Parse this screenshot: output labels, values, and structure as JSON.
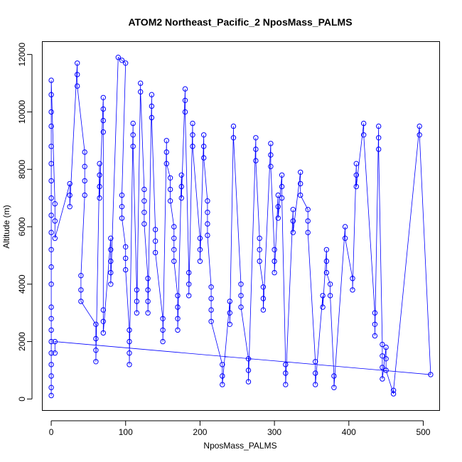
{
  "chart_data": {
    "type": "scatter",
    "title": "ATOM2 Northeast_Pacific_2 NposMass_PALMS",
    "xlabel": "NposMass_PALMS",
    "ylabel": "Altitude (m)",
    "xlim": [
      -12,
      522
    ],
    "ylim": [
      -400,
      12450
    ],
    "xticks": [
      0,
      100,
      200,
      300,
      400,
      500
    ],
    "yticks": [
      0,
      2000,
      4000,
      6000,
      8000,
      10000,
      12000
    ],
    "grid": false,
    "legend": "none",
    "color": "#0000ff",
    "marker": "open-circle",
    "connected_by_lines": true,
    "series": [
      {
        "values": [
          [
            0,
            120
          ],
          [
            0,
            400
          ],
          [
            0,
            800
          ],
          [
            0,
            1200
          ],
          [
            0,
            1600
          ],
          [
            0,
            2000
          ],
          [
            0,
            2400
          ],
          [
            0,
            2800
          ],
          [
            0,
            3200
          ],
          [
            0,
            4000
          ],
          [
            0,
            4600
          ],
          [
            0,
            5200
          ],
          [
            0,
            5800
          ],
          [
            0,
            6400
          ],
          [
            0,
            7000
          ],
          [
            0,
            7600
          ],
          [
            0,
            8200
          ],
          [
            0,
            8800
          ],
          [
            0,
            9500
          ],
          [
            0,
            10000
          ],
          [
            0,
            10600
          ],
          [
            0,
            11100
          ],
          [
            5,
            6800
          ],
          [
            5,
            6200
          ],
          [
            5,
            5600
          ],
          [
            25,
            7500
          ],
          [
            25,
            7100
          ],
          [
            25,
            6700
          ],
          [
            35,
            11700
          ],
          [
            35,
            11300
          ],
          [
            35,
            10900
          ],
          [
            45,
            8600
          ],
          [
            45,
            8100
          ],
          [
            45,
            7600
          ],
          [
            45,
            7100
          ],
          [
            40,
            4300
          ],
          [
            40,
            3800
          ],
          [
            40,
            3400
          ],
          [
            60,
            2600
          ],
          [
            60,
            2100
          ],
          [
            60,
            1700
          ],
          [
            60,
            1300
          ],
          [
            65,
            8200
          ],
          [
            65,
            7800
          ],
          [
            65,
            7400
          ],
          [
            65,
            7000
          ],
          [
            70,
            10500
          ],
          [
            70,
            10100
          ],
          [
            70,
            9700
          ],
          [
            70,
            9300
          ],
          [
            70,
            3100
          ],
          [
            70,
            2700
          ],
          [
            70,
            2300
          ],
          [
            80,
            5600
          ],
          [
            80,
            5200
          ],
          [
            80,
            4800
          ],
          [
            80,
            4400
          ],
          [
            80,
            4000
          ],
          [
            90,
            11900
          ],
          [
            95,
            11800
          ],
          [
            100,
            11700
          ],
          [
            95,
            7100
          ],
          [
            95,
            6700
          ],
          [
            95,
            6300
          ],
          [
            100,
            5300
          ],
          [
            100,
            4900
          ],
          [
            100,
            4500
          ],
          [
            105,
            2400
          ],
          [
            105,
            2000
          ],
          [
            105,
            1600
          ],
          [
            105,
            1200
          ],
          [
            110,
            9600
          ],
          [
            110,
            9200
          ],
          [
            110,
            8800
          ],
          [
            115,
            3800
          ],
          [
            115,
            3400
          ],
          [
            115,
            3000
          ],
          [
            120,
            11000
          ],
          [
            120,
            10700
          ],
          [
            125,
            7300
          ],
          [
            125,
            6900
          ],
          [
            125,
            6500
          ],
          [
            125,
            6100
          ],
          [
            130,
            4200
          ],
          [
            130,
            3800
          ],
          [
            130,
            3400
          ],
          [
            130,
            3000
          ],
          [
            135,
            10600
          ],
          [
            135,
            10200
          ],
          [
            135,
            9800
          ],
          [
            140,
            5900
          ],
          [
            140,
            5500
          ],
          [
            140,
            5100
          ],
          [
            150,
            2800
          ],
          [
            150,
            2400
          ],
          [
            150,
            2000
          ],
          [
            155,
            9000
          ],
          [
            155,
            8600
          ],
          [
            155,
            8200
          ],
          [
            160,
            7700
          ],
          [
            160,
            7300
          ],
          [
            160,
            6900
          ],
          [
            165,
            6000
          ],
          [
            165,
            5600
          ],
          [
            165,
            5200
          ],
          [
            165,
            4800
          ],
          [
            170,
            3600
          ],
          [
            170,
            3200
          ],
          [
            170,
            2800
          ],
          [
            170,
            2400
          ],
          [
            175,
            7800
          ],
          [
            175,
            7400
          ],
          [
            175,
            7000
          ],
          [
            180,
            10800
          ],
          [
            180,
            10400
          ],
          [
            180,
            10000
          ],
          [
            185,
            4400
          ],
          [
            185,
            4000
          ],
          [
            185,
            3600
          ],
          [
            190,
            9600
          ],
          [
            190,
            9200
          ],
          [
            190,
            8800
          ],
          [
            200,
            5600
          ],
          [
            200,
            5200
          ],
          [
            200,
            4800
          ],
          [
            205,
            9200
          ],
          [
            205,
            8800
          ],
          [
            205,
            8400
          ],
          [
            210,
            6900
          ],
          [
            210,
            6500
          ],
          [
            210,
            6100
          ],
          [
            210,
            5700
          ],
          [
            215,
            3900
          ],
          [
            215,
            3500
          ],
          [
            215,
            3100
          ],
          [
            215,
            2700
          ],
          [
            230,
            1200
          ],
          [
            230,
            800
          ],
          [
            230,
            500
          ],
          [
            240,
            3400
          ],
          [
            240,
            3000
          ],
          [
            240,
            2600
          ],
          [
            245,
            9500
          ],
          [
            245,
            9100
          ],
          [
            255,
            4000
          ],
          [
            255,
            3600
          ],
          [
            255,
            3200
          ],
          [
            265,
            1400
          ],
          [
            265,
            1000
          ],
          [
            265,
            600
          ],
          [
            275,
            9100
          ],
          [
            275,
            8700
          ],
          [
            275,
            8300
          ],
          [
            280,
            5600
          ],
          [
            280,
            5200
          ],
          [
            280,
            4800
          ],
          [
            285,
            3900
          ],
          [
            285,
            3500
          ],
          [
            285,
            3100
          ],
          [
            295,
            8900
          ],
          [
            295,
            8500
          ],
          [
            295,
            8100
          ],
          [
            300,
            5200
          ],
          [
            300,
            4800
          ],
          [
            300,
            4400
          ],
          [
            305,
            7100
          ],
          [
            305,
            6700
          ],
          [
            305,
            6300
          ],
          [
            310,
            7800
          ],
          [
            310,
            7400
          ],
          [
            310,
            7000
          ],
          [
            315,
            1200
          ],
          [
            315,
            900
          ],
          [
            315,
            500
          ],
          [
            325,
            6600
          ],
          [
            325,
            6200
          ],
          [
            325,
            5800
          ],
          [
            335,
            7900
          ],
          [
            335,
            7500
          ],
          [
            335,
            7100
          ],
          [
            345,
            6600
          ],
          [
            345,
            6200
          ],
          [
            345,
            5800
          ],
          [
            355,
            1300
          ],
          [
            355,
            900
          ],
          [
            355,
            500
          ],
          [
            365,
            3600
          ],
          [
            365,
            3200
          ],
          [
            370,
            5200
          ],
          [
            370,
            4800
          ],
          [
            370,
            4400
          ],
          [
            375,
            4000
          ],
          [
            375,
            3600
          ],
          [
            380,
            800
          ],
          [
            380,
            400
          ],
          [
            395,
            6000
          ],
          [
            395,
            5600
          ],
          [
            405,
            4200
          ],
          [
            405,
            3800
          ],
          [
            410,
            8200
          ],
          [
            410,
            7800
          ],
          [
            410,
            7400
          ],
          [
            420,
            9600
          ],
          [
            420,
            9200
          ],
          [
            435,
            3000
          ],
          [
            435,
            2600
          ],
          [
            435,
            2200
          ],
          [
            440,
            9500
          ],
          [
            440,
            9100
          ],
          [
            440,
            8700
          ],
          [
            445,
            1900
          ],
          [
            445,
            1500
          ],
          [
            445,
            1100
          ],
          [
            445,
            700
          ],
          [
            450,
            1800
          ],
          [
            450,
            1400
          ],
          [
            450,
            1000
          ],
          [
            460,
            180
          ],
          [
            460,
            300
          ],
          [
            495,
            9500
          ],
          [
            495,
            9200
          ],
          [
            510,
            850
          ],
          [
            5,
            2000
          ],
          [
            5,
            1600
          ]
        ]
      }
    ]
  }
}
